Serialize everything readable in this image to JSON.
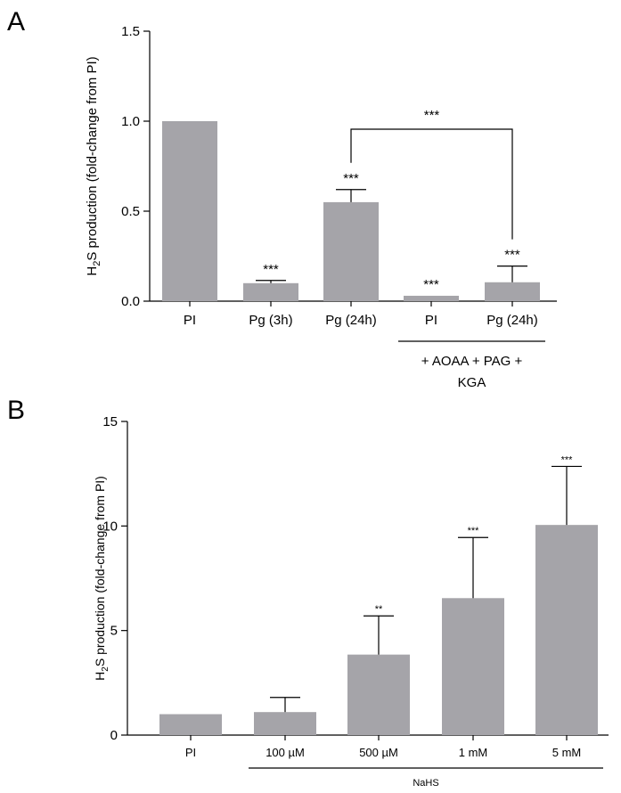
{
  "chart_data": [
    {
      "panel": "A",
      "type": "bar",
      "ylabel": {
        "pre": "H",
        "sub": "2",
        "post": "S production (fold-change from PI)"
      },
      "ylim": [
        0,
        1.5
      ],
      "yticks": [
        "0.0",
        "0.5",
        "1.0",
        "1.5"
      ],
      "categories": [
        "PI",
        "Pg (3h)",
        "Pg (24h)",
        "PI",
        "Pg (24h)"
      ],
      "values": [
        1.0,
        0.1,
        0.55,
        0.03,
        0.105
      ],
      "errors": [
        0.0,
        0.015,
        0.07,
        0.0,
        0.09
      ],
      "significance": [
        "",
        "***",
        "***",
        "***",
        "***"
      ],
      "comparison": {
        "from": 2,
        "to": 4,
        "label": "***"
      },
      "group_label": {
        "from": 3,
        "to": 4,
        "lines": [
          "+ AOAA + PAG +",
          "KGA"
        ]
      },
      "grid": false
    },
    {
      "panel": "B",
      "type": "bar",
      "ylabel": {
        "pre": "H",
        "sub": "2",
        "post": "S production (fold-change from PI)"
      },
      "ylim": [
        0,
        15
      ],
      "yticks": [
        "0",
        "5",
        "10",
        "15"
      ],
      "categories": [
        "PI",
        "100 µM",
        "500 µM",
        "1 mM",
        "5 mM"
      ],
      "values": [
        1.0,
        1.1,
        3.85,
        6.55,
        10.05
      ],
      "errors": [
        0.0,
        0.7,
        1.85,
        2.9,
        2.8
      ],
      "significance": [
        "",
        "",
        "**",
        "***",
        "***"
      ],
      "group_label": {
        "from": 1,
        "to": 4,
        "lines": [
          "NaHS"
        ]
      },
      "grid": false
    }
  ]
}
